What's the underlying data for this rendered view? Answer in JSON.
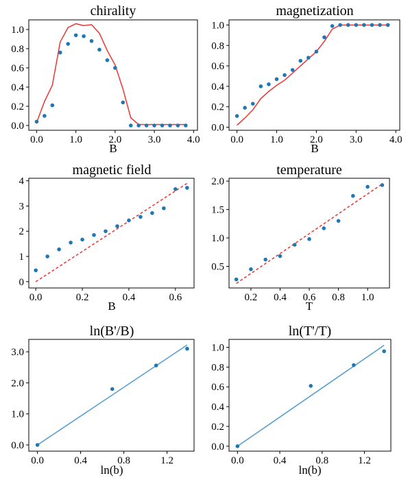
{
  "colors": {
    "points": "#1f77b4",
    "model_red": "#ee3333",
    "fit_blue": "#4e9bd0"
  },
  "chart_data": [
    {
      "type": "line",
      "title": "chirality",
      "xlabel": "B",
      "ylabel": "",
      "xlim": [
        -0.2,
        4.1
      ],
      "ylim": [
        -0.05,
        1.1
      ],
      "xticks": [
        0,
        1,
        2,
        3,
        4
      ],
      "yticks": [
        0.0,
        0.2,
        0.4,
        0.6,
        0.8,
        1.0
      ],
      "tick_format": "1",
      "scatter": {
        "x": [
          0.0,
          0.2,
          0.4,
          0.6,
          0.8,
          1.0,
          1.2,
          1.4,
          1.6,
          1.8,
          2.0,
          2.2,
          2.4,
          2.6,
          2.8,
          3.0,
          3.2,
          3.4,
          3.6,
          3.8
        ],
        "y": [
          0.04,
          0.1,
          0.21,
          0.76,
          0.85,
          0.94,
          0.93,
          0.88,
          0.79,
          0.68,
          0.6,
          0.24,
          0.0,
          0.0,
          0.0,
          0.0,
          0.0,
          0.0,
          0.0,
          0.0
        ]
      },
      "line": {
        "style": "solid",
        "color": "#ee3333",
        "x": [
          0.0,
          0.2,
          0.4,
          0.6,
          0.8,
          1.0,
          1.2,
          1.4,
          1.6,
          1.8,
          2.0,
          2.2,
          2.4,
          2.6,
          2.8,
          3.0,
          3.2,
          3.4,
          3.6,
          3.8
        ],
        "y": [
          0.03,
          0.25,
          0.42,
          0.87,
          1.02,
          1.06,
          1.04,
          1.05,
          0.96,
          0.78,
          0.63,
          0.38,
          0.08,
          0.01,
          0.01,
          0.01,
          0.01,
          0.01,
          0.01,
          0.01
        ]
      }
    },
    {
      "type": "line",
      "title": "magnetization",
      "xlabel": "B",
      "ylabel": "",
      "xlim": [
        -0.2,
        4.1
      ],
      "ylim": [
        -0.03,
        1.05
      ],
      "xticks": [
        0,
        1,
        2,
        3,
        4
      ],
      "yticks": [
        0.0,
        0.2,
        0.4,
        0.6,
        0.8,
        1.0
      ],
      "tick_format": "1",
      "scatter": {
        "x": [
          0.0,
          0.2,
          0.4,
          0.6,
          0.8,
          1.0,
          1.2,
          1.4,
          1.6,
          1.8,
          2.0,
          2.2,
          2.4,
          2.6,
          2.8,
          3.0,
          3.2,
          3.4,
          3.6,
          3.8
        ],
        "y": [
          0.11,
          0.19,
          0.23,
          0.4,
          0.42,
          0.47,
          0.51,
          0.56,
          0.65,
          0.68,
          0.74,
          0.88,
          0.99,
          1.0,
          1.0,
          1.0,
          1.0,
          1.0,
          1.0,
          1.0
        ]
      },
      "line": {
        "style": "solid",
        "color": "#ee3333",
        "x": [
          0.0,
          0.2,
          0.4,
          0.6,
          0.8,
          1.0,
          1.2,
          1.4,
          1.6,
          1.8,
          2.0,
          2.2,
          2.4,
          2.6,
          2.8,
          3.0,
          3.2,
          3.4,
          3.6,
          3.8
        ],
        "y": [
          0.02,
          0.09,
          0.17,
          0.28,
          0.35,
          0.41,
          0.46,
          0.53,
          0.6,
          0.67,
          0.74,
          0.84,
          0.96,
          1.0,
          1.0,
          1.0,
          1.0,
          1.0,
          1.0,
          1.0
        ]
      }
    },
    {
      "type": "scatter",
      "title": "magnetic field",
      "xlabel": "B",
      "ylabel": "",
      "xlim": [
        -0.03,
        0.68
      ],
      "ylim": [
        -0.25,
        4.1
      ],
      "xticks": [
        0.0,
        0.2,
        0.4,
        0.6
      ],
      "yticks": [
        0,
        1,
        2,
        3,
        4
      ],
      "tick_format_x": "1",
      "tick_format_y": "0",
      "scatter": {
        "x": [
          0.0,
          0.05,
          0.1,
          0.15,
          0.2,
          0.25,
          0.3,
          0.35,
          0.4,
          0.45,
          0.5,
          0.55,
          0.6,
          0.65
        ],
        "y": [
          0.45,
          1.0,
          1.28,
          1.55,
          1.67,
          1.85,
          2.0,
          2.2,
          2.43,
          2.57,
          2.72,
          2.91,
          3.67,
          3.72
        ]
      },
      "line": {
        "style": "dashed",
        "color": "#ee3333",
        "x": [
          0.0,
          0.65
        ],
        "y": [
          0.0,
          3.9
        ]
      }
    },
    {
      "type": "scatter",
      "title": "temperature",
      "xlabel": "T",
      "ylabel": "",
      "xlim": [
        0.05,
        1.15
      ],
      "ylim": [
        0.12,
        2.05
      ],
      "xticks": [
        0.2,
        0.4,
        0.6,
        0.8,
        1.0
      ],
      "yticks": [
        0.5,
        1.0,
        1.5,
        2.0
      ],
      "tick_format": "1",
      "scatter": {
        "x": [
          0.1,
          0.2,
          0.3,
          0.4,
          0.5,
          0.6,
          0.7,
          0.8,
          0.9,
          1.0,
          1.1
        ],
        "y": [
          0.27,
          0.45,
          0.62,
          0.68,
          0.88,
          0.98,
          1.17,
          1.3,
          1.74,
          1.9,
          1.93
        ]
      },
      "line": {
        "style": "dashed",
        "color": "#ee3333",
        "x": [
          0.1,
          1.1
        ],
        "y": [
          0.2,
          1.95
        ]
      }
    },
    {
      "type": "scatter",
      "title": "ln(B'/B)",
      "xlabel": "ln(b)",
      "ylabel": "",
      "xlim": [
        -0.08,
        1.45
      ],
      "ylim": [
        -0.2,
        3.4
      ],
      "xticks": [
        0.0,
        0.4,
        0.8,
        1.2
      ],
      "yticks": [
        0.0,
        1.0,
        2.0,
        3.0
      ],
      "tick_format": "1",
      "scatter": {
        "x": [
          0.0,
          0.693,
          1.099,
          1.386
        ],
        "y": [
          0.0,
          1.8,
          2.56,
          3.1
        ]
      },
      "line": {
        "style": "solid",
        "color": "#4e9bd0",
        "x": [
          0.0,
          1.386
        ],
        "y": [
          0.0,
          3.22
        ]
      }
    },
    {
      "type": "scatter",
      "title": "ln(T'/T)",
      "xlabel": "ln(b)",
      "ylabel": "",
      "xlim": [
        -0.08,
        1.45
      ],
      "ylim": [
        -0.05,
        1.08
      ],
      "xticks": [
        0.0,
        0.4,
        0.8,
        1.2
      ],
      "yticks": [
        0.0,
        0.2,
        0.4,
        0.6,
        0.8,
        1.0
      ],
      "tick_format": "1",
      "scatter": {
        "x": [
          0.0,
          0.693,
          1.099,
          1.386
        ],
        "y": [
          0.0,
          0.61,
          0.82,
          0.96
        ]
      },
      "line": {
        "style": "solid",
        "color": "#4e9bd0",
        "x": [
          0.0,
          1.386
        ],
        "y": [
          0.0,
          1.02
        ]
      }
    }
  ]
}
